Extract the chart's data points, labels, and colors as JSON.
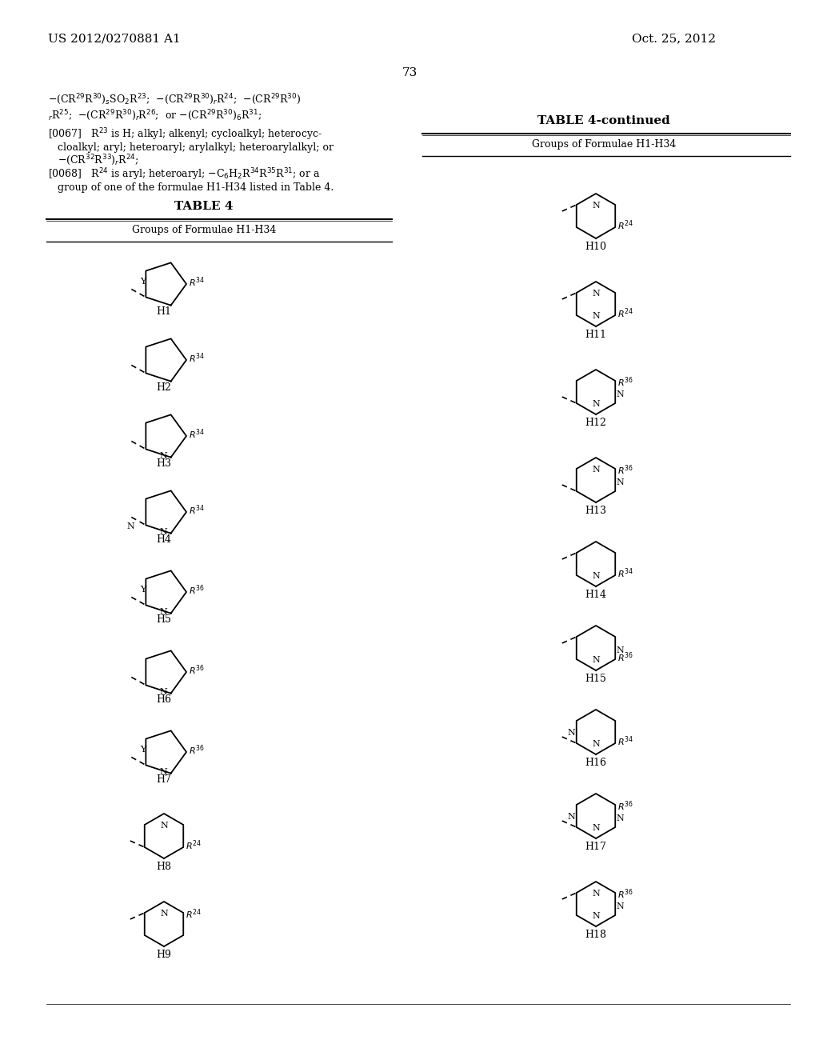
{
  "page_header_left": "US 2012/0270881 A1",
  "page_header_right": "Oct. 25, 2012",
  "page_number": "73",
  "background_color": "#ffffff",
  "text_color": "#000000",
  "table_title": "TABLE 4",
  "table_subtitle": "Groups of Formulae H1-H34",
  "table_continued_title": "TABLE 4-continued",
  "table_continued_subtitle": "Groups of Formulae H1-H34"
}
